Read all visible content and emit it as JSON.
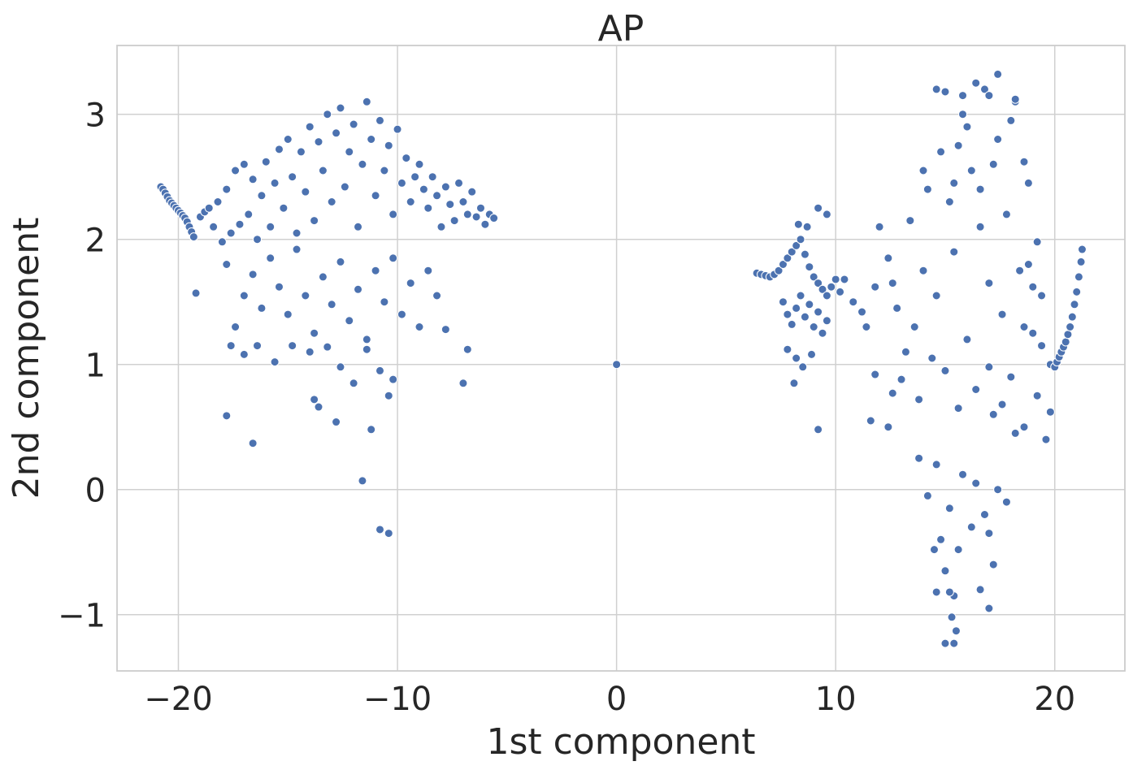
{
  "chart_data": {
    "type": "scatter",
    "title": "AP",
    "xlabel": "1st component",
    "ylabel": "2nd component",
    "xlim": [
      -22.8,
      23.2
    ],
    "ylim": [
      -1.45,
      3.55
    ],
    "xticks": [
      -20,
      -10,
      0,
      10,
      20
    ],
    "yticks": [
      -1,
      0,
      1,
      2,
      3
    ],
    "xtick_labels": [
      "−20",
      "−10",
      "0",
      "10",
      "20"
    ],
    "ytick_labels": [
      "−1",
      "0",
      "1",
      "2",
      "3"
    ],
    "grid": true,
    "point_color": "#4c72b0",
    "points": [
      [
        -20.8,
        2.42
      ],
      [
        -20.7,
        2.4
      ],
      [
        -20.6,
        2.37
      ],
      [
        -20.5,
        2.34
      ],
      [
        -20.4,
        2.31
      ],
      [
        -20.3,
        2.29
      ],
      [
        -20.2,
        2.27
      ],
      [
        -20.1,
        2.25
      ],
      [
        -20.0,
        2.23
      ],
      [
        -19.9,
        2.21
      ],
      [
        -19.8,
        2.19
      ],
      [
        -19.7,
        2.17
      ],
      [
        -19.6,
        2.14
      ],
      [
        -19.5,
        2.1
      ],
      [
        -19.4,
        2.06
      ],
      [
        -19.3,
        2.02
      ],
      [
        -19.0,
        2.18
      ],
      [
        -18.8,
        2.22
      ],
      [
        -18.6,
        2.25
      ],
      [
        -18.4,
        2.1
      ],
      [
        -18.2,
        2.3
      ],
      [
        -18.0,
        1.98
      ],
      [
        -17.8,
        2.4
      ],
      [
        -17.6,
        2.05
      ],
      [
        -17.4,
        2.55
      ],
      [
        -17.2,
        2.12
      ],
      [
        -17.0,
        2.6
      ],
      [
        -16.8,
        2.2
      ],
      [
        -16.6,
        2.48
      ],
      [
        -16.4,
        2.0
      ],
      [
        -16.2,
        2.35
      ],
      [
        -16.0,
        2.62
      ],
      [
        -15.8,
        2.1
      ],
      [
        -15.6,
        2.45
      ],
      [
        -15.4,
        2.72
      ],
      [
        -15.2,
        2.25
      ],
      [
        -15.0,
        2.8
      ],
      [
        -14.8,
        2.5
      ],
      [
        -14.6,
        2.05
      ],
      [
        -14.4,
        2.7
      ],
      [
        -14.2,
        2.38
      ],
      [
        -14.0,
        2.9
      ],
      [
        -13.8,
        2.15
      ],
      [
        -13.6,
        2.78
      ],
      [
        -13.4,
        2.55
      ],
      [
        -13.2,
        3.0
      ],
      [
        -13.0,
        2.3
      ],
      [
        -12.8,
        2.85
      ],
      [
        -12.6,
        3.05
      ],
      [
        -12.4,
        2.42
      ],
      [
        -12.2,
        2.7
      ],
      [
        -12.0,
        2.92
      ],
      [
        -11.8,
        2.1
      ],
      [
        -11.6,
        2.6
      ],
      [
        -11.4,
        3.1
      ],
      [
        -11.2,
        2.8
      ],
      [
        -11.0,
        2.35
      ],
      [
        -10.8,
        2.95
      ],
      [
        -10.6,
        2.55
      ],
      [
        -10.4,
        2.75
      ],
      [
        -10.2,
        2.2
      ],
      [
        -10.0,
        2.88
      ],
      [
        -9.8,
        2.45
      ],
      [
        -9.6,
        2.65
      ],
      [
        -9.4,
        2.3
      ],
      [
        -9.2,
        2.5
      ],
      [
        -9.0,
        2.6
      ],
      [
        -8.8,
        2.4
      ],
      [
        -8.6,
        2.25
      ],
      [
        -8.4,
        2.5
      ],
      [
        -8.2,
        2.35
      ],
      [
        -8.0,
        2.1
      ],
      [
        -7.8,
        2.42
      ],
      [
        -7.6,
        2.28
      ],
      [
        -7.4,
        2.15
      ],
      [
        -7.2,
        2.45
      ],
      [
        -7.0,
        2.3
      ],
      [
        -6.8,
        2.2
      ],
      [
        -6.6,
        2.38
      ],
      [
        -6.4,
        2.18
      ],
      [
        -6.2,
        2.25
      ],
      [
        -6.0,
        2.12
      ],
      [
        -5.8,
        2.2
      ],
      [
        -5.6,
        2.17
      ],
      [
        -19.2,
        1.57
      ],
      [
        -17.8,
        1.8
      ],
      [
        -17.4,
        1.3
      ],
      [
        -17.0,
        1.55
      ],
      [
        -16.6,
        1.72
      ],
      [
        -16.2,
        1.45
      ],
      [
        -15.8,
        1.85
      ],
      [
        -15.4,
        1.62
      ],
      [
        -15.0,
        1.4
      ],
      [
        -14.6,
        1.92
      ],
      [
        -14.2,
        1.55
      ],
      [
        -13.8,
        1.25
      ],
      [
        -13.4,
        1.7
      ],
      [
        -13.0,
        1.48
      ],
      [
        -12.6,
        1.82
      ],
      [
        -12.2,
        1.35
      ],
      [
        -11.8,
        1.6
      ],
      [
        -11.4,
        1.2
      ],
      [
        -11.0,
        1.75
      ],
      [
        -10.6,
        1.5
      ],
      [
        -10.2,
        1.85
      ],
      [
        -9.8,
        1.4
      ],
      [
        -9.4,
        1.65
      ],
      [
        -9.0,
        1.3
      ],
      [
        -8.6,
        1.75
      ],
      [
        -8.2,
        1.55
      ],
      [
        -7.8,
        1.28
      ],
      [
        -17.6,
        1.15
      ],
      [
        -17.0,
        1.08
      ],
      [
        -16.4,
        1.15
      ],
      [
        -15.6,
        1.02
      ],
      [
        -14.8,
        1.15
      ],
      [
        -14.0,
        1.1
      ],
      [
        -13.2,
        1.14
      ],
      [
        -12.6,
        0.98
      ],
      [
        -12.0,
        0.85
      ],
      [
        -11.4,
        1.12
      ],
      [
        -10.8,
        0.95
      ],
      [
        -10.2,
        0.88
      ],
      [
        -7.0,
        0.85
      ],
      [
        -6.8,
        1.12
      ],
      [
        -17.8,
        0.59
      ],
      [
        -16.6,
        0.37
      ],
      [
        -13.8,
        0.72
      ],
      [
        -13.6,
        0.66
      ],
      [
        -12.8,
        0.54
      ],
      [
        -11.6,
        0.07
      ],
      [
        -11.2,
        0.48
      ],
      [
        -10.8,
        -0.32
      ],
      [
        -10.4,
        -0.35
      ],
      [
        -10.4,
        0.75
      ],
      [
        0.0,
        1.0
      ],
      [
        6.4,
        1.73
      ],
      [
        6.6,
        1.72
      ],
      [
        6.8,
        1.71
      ],
      [
        7.0,
        1.7
      ],
      [
        7.2,
        1.72
      ],
      [
        7.4,
        1.75
      ],
      [
        7.6,
        1.8
      ],
      [
        7.8,
        1.85
      ],
      [
        8.0,
        1.9
      ],
      [
        8.2,
        1.95
      ],
      [
        8.4,
        2.0
      ],
      [
        8.6,
        1.88
      ],
      [
        8.8,
        1.78
      ],
      [
        9.0,
        1.7
      ],
      [
        9.2,
        1.65
      ],
      [
        9.4,
        1.6
      ],
      [
        9.6,
        1.55
      ],
      [
        9.8,
        1.62
      ],
      [
        10.0,
        1.68
      ],
      [
        10.2,
        1.58
      ],
      [
        7.6,
        1.5
      ],
      [
        7.8,
        1.4
      ],
      [
        8.0,
        1.32
      ],
      [
        8.2,
        1.45
      ],
      [
        8.4,
        1.55
      ],
      [
        8.6,
        1.38
      ],
      [
        8.8,
        1.48
      ],
      [
        9.0,
        1.3
      ],
      [
        9.2,
        1.42
      ],
      [
        9.4,
        1.25
      ],
      [
        9.6,
        1.35
      ],
      [
        7.8,
        1.12
      ],
      [
        8.2,
        1.05
      ],
      [
        8.5,
        0.98
      ],
      [
        8.9,
        1.08
      ],
      [
        8.1,
        0.85
      ],
      [
        9.2,
        0.48
      ],
      [
        9.2,
        2.25
      ],
      [
        9.6,
        2.2
      ],
      [
        8.3,
        2.12
      ],
      [
        8.7,
        2.1
      ],
      [
        10.4,
        1.68
      ],
      [
        10.8,
        1.5
      ],
      [
        11.2,
        1.42
      ],
      [
        11.4,
        1.3
      ],
      [
        11.8,
        1.62
      ],
      [
        11.8,
        0.92
      ],
      [
        11.6,
        0.55
      ],
      [
        12.4,
        0.5
      ],
      [
        12.6,
        0.77
      ],
      [
        12.0,
        2.1
      ],
      [
        12.4,
        1.85
      ],
      [
        12.6,
        1.65
      ],
      [
        12.8,
        1.45
      ],
      [
        13.0,
        0.88
      ],
      [
        13.2,
        1.1
      ],
      [
        13.4,
        2.15
      ],
      [
        13.6,
        1.3
      ],
      [
        13.8,
        0.72
      ],
      [
        14.0,
        1.75
      ],
      [
        14.2,
        2.4
      ],
      [
        14.4,
        1.05
      ],
      [
        14.6,
        1.55
      ],
      [
        14.8,
        2.7
      ],
      [
        15.0,
        0.95
      ],
      [
        15.2,
        2.3
      ],
      [
        15.4,
        1.9
      ],
      [
        15.6,
        0.65
      ],
      [
        15.8,
        3.0
      ],
      [
        16.0,
        1.2
      ],
      [
        16.2,
        2.55
      ],
      [
        16.4,
        0.8
      ],
      [
        16.6,
        2.1
      ],
      [
        16.8,
        3.2
      ],
      [
        17.0,
        1.65
      ],
      [
        17.2,
        0.6
      ],
      [
        17.4,
        2.8
      ],
      [
        17.6,
        1.4
      ],
      [
        17.8,
        2.2
      ],
      [
        18.0,
        0.9
      ],
      [
        18.2,
        3.1
      ],
      [
        18.4,
        1.75
      ],
      [
        18.6,
        0.5
      ],
      [
        18.8,
        2.45
      ],
      [
        19.0,
        1.25
      ],
      [
        19.2,
        0.75
      ],
      [
        19.4,
        1.55
      ],
      [
        19.6,
        0.4
      ],
      [
        19.8,
        1.0
      ],
      [
        14.6,
        3.2
      ],
      [
        15.0,
        3.18
      ],
      [
        15.8,
        3.15
      ],
      [
        16.4,
        3.25
      ],
      [
        16.8,
        3.2
      ],
      [
        17.4,
        3.32
      ],
      [
        17.0,
        3.15
      ],
      [
        18.2,
        3.12
      ],
      [
        18.0,
        2.95
      ],
      [
        16.0,
        2.9
      ],
      [
        15.6,
        2.75
      ],
      [
        17.2,
        2.6
      ],
      [
        16.6,
        2.4
      ],
      [
        15.4,
        2.45
      ],
      [
        18.6,
        2.62
      ],
      [
        14.0,
        2.55
      ],
      [
        13.8,
        0.25
      ],
      [
        14.2,
        -0.05
      ],
      [
        14.6,
        0.2
      ],
      [
        14.8,
        -0.4
      ],
      [
        15.0,
        -0.65
      ],
      [
        15.2,
        -0.15
      ],
      [
        15.4,
        -0.85
      ],
      [
        15.6,
        -0.48
      ],
      [
        15.8,
        0.12
      ],
      [
        16.2,
        -0.3
      ],
      [
        16.4,
        0.05
      ],
      [
        16.8,
        -0.2
      ],
      [
        17.0,
        -0.35
      ],
      [
        17.2,
        -0.6
      ],
      [
        17.4,
        0.0
      ],
      [
        17.8,
        -0.1
      ],
      [
        14.6,
        -0.82
      ],
      [
        15.2,
        -0.82
      ],
      [
        15.0,
        -1.23
      ],
      [
        15.4,
        -1.23
      ],
      [
        15.5,
        -1.13
      ],
      [
        15.3,
        -1.02
      ],
      [
        16.6,
        -0.8
      ],
      [
        17.0,
        -0.95
      ],
      [
        14.5,
        -0.48
      ],
      [
        20.0,
        0.98
      ],
      [
        20.1,
        1.02
      ],
      [
        20.2,
        1.06
      ],
      [
        20.3,
        1.1
      ],
      [
        20.4,
        1.14
      ],
      [
        20.5,
        1.18
      ],
      [
        20.6,
        1.24
      ],
      [
        20.7,
        1.3
      ],
      [
        20.8,
        1.38
      ],
      [
        20.9,
        1.48
      ],
      [
        21.0,
        1.58
      ],
      [
        21.1,
        1.7
      ],
      [
        21.2,
        1.82
      ],
      [
        21.25,
        1.92
      ],
      [
        19.2,
        1.98
      ],
      [
        18.8,
        1.8
      ],
      [
        19.0,
        1.62
      ],
      [
        18.6,
        1.3
      ],
      [
        19.4,
        1.15
      ],
      [
        19.8,
        0.62
      ],
      [
        18.2,
        0.45
      ],
      [
        17.6,
        0.68
      ],
      [
        17.0,
        0.98
      ]
    ]
  }
}
